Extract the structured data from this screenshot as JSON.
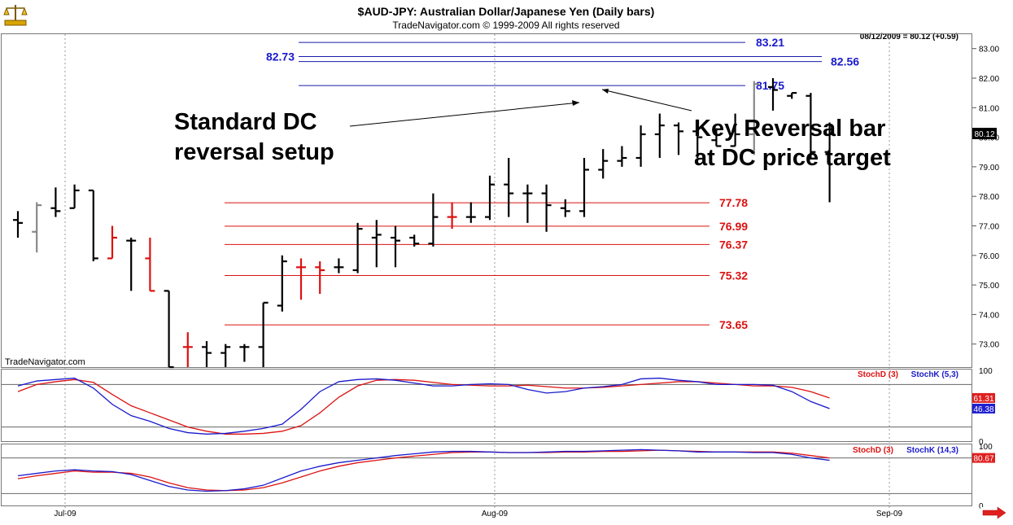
{
  "header": {
    "title": "$AUD-JPY:  Australian Dollar/Japanese Yen  (Daily bars)",
    "copyright": "TradeNavigator.com © 1999-2009 All rights reserved",
    "last_quote": "08/12/2009 = 80.12 (+0.59)",
    "watermark": "TradeNavigator.com",
    "logo_icon": "scale-logo-icon"
  },
  "colors": {
    "bar_black": "#000000",
    "bar_red": "#dd1111",
    "bar_gray": "#888888",
    "support_line": "#dd1111",
    "resistance_line": "#1a1aaa",
    "stoch_d": "#dd1111",
    "stoch_k": "#1a1acc",
    "grid": "#999999",
    "border": "#666666"
  },
  "annotations": {
    "left_text_line1": "Standard DC",
    "left_text_line2": "reversal setup",
    "right_text_line1": "Key Reversal bar",
    "right_text_line2": "at DC price target"
  },
  "chart_data": [
    {
      "type": "ohlc",
      "title": "$AUD-JPY:  Australian Dollar/Japanese Yen  (Daily bars)",
      "ylim": [
        72.2,
        83.4
      ],
      "y_ticks": [
        "83.00",
        "82.00",
        "81.00",
        "80.00",
        "79.00",
        "78.00",
        "77.00",
        "76.00",
        "75.00",
        "74.00",
        "73.00"
      ],
      "x_ticks": [
        "Jul-09",
        "Aug-09",
        "Sep-09"
      ],
      "last_value_label": "80.12",
      "bars": [
        {
          "o": 77.2,
          "h": 77.5,
          "l": 76.6,
          "c": 77.1,
          "color": "black"
        },
        {
          "o": 76.8,
          "h": 77.8,
          "l": 76.1,
          "c": 77.7,
          "color": "gray"
        },
        {
          "o": 77.6,
          "h": 78.3,
          "l": 77.3,
          "c": 77.5,
          "color": "black"
        },
        {
          "o": 77.6,
          "h": 78.4,
          "l": 77.6,
          "c": 78.2,
          "color": "black"
        },
        {
          "o": 78.2,
          "h": 78.2,
          "l": 75.8,
          "c": 75.9,
          "color": "black"
        },
        {
          "o": 75.9,
          "h": 77.0,
          "l": 75.9,
          "c": 76.6,
          "color": "red"
        },
        {
          "o": 76.5,
          "h": 76.6,
          "l": 74.8,
          "c": 76.5,
          "color": "black"
        },
        {
          "o": 75.9,
          "h": 76.6,
          "l": 74.8,
          "c": 74.8,
          "color": "red"
        },
        {
          "o": 74.8,
          "h": 74.8,
          "l": 72.2,
          "c": 72.2,
          "color": "black"
        },
        {
          "o": 72.9,
          "h": 73.4,
          "l": 72.2,
          "c": 72.9,
          "color": "red"
        },
        {
          "o": 72.9,
          "h": 73.1,
          "l": 72.2,
          "c": 72.7,
          "color": "black"
        },
        {
          "o": 72.7,
          "h": 73.0,
          "l": 72.2,
          "c": 72.9,
          "color": "black"
        },
        {
          "o": 72.9,
          "h": 73.0,
          "l": 72.4,
          "c": 72.9,
          "color": "black"
        },
        {
          "o": 72.9,
          "h": 74.4,
          "l": 72.2,
          "c": 74.4,
          "color": "black"
        },
        {
          "o": 74.3,
          "h": 76.0,
          "l": 74.1,
          "c": 75.8,
          "color": "black"
        },
        {
          "o": 75.6,
          "h": 75.9,
          "l": 74.5,
          "c": 75.6,
          "color": "red"
        },
        {
          "o": 75.6,
          "h": 75.8,
          "l": 74.7,
          "c": 75.5,
          "color": "red"
        },
        {
          "o": 75.6,
          "h": 75.9,
          "l": 75.4,
          "c": 75.6,
          "color": "black"
        },
        {
          "o": 75.5,
          "h": 77.1,
          "l": 75.4,
          "c": 76.9,
          "color": "black"
        },
        {
          "o": 76.6,
          "h": 77.2,
          "l": 75.6,
          "c": 76.7,
          "color": "black"
        },
        {
          "o": 76.6,
          "h": 77.0,
          "l": 75.6,
          "c": 76.5,
          "color": "black"
        },
        {
          "o": 76.6,
          "h": 76.7,
          "l": 76.3,
          "c": 76.4,
          "color": "black"
        },
        {
          "o": 76.4,
          "h": 78.1,
          "l": 76.3,
          "c": 77.3,
          "color": "black"
        },
        {
          "o": 77.3,
          "h": 77.8,
          "l": 76.9,
          "c": 77.3,
          "color": "red"
        },
        {
          "o": 77.3,
          "h": 77.8,
          "l": 77.1,
          "c": 77.3,
          "color": "black"
        },
        {
          "o": 77.3,
          "h": 78.7,
          "l": 77.2,
          "c": 78.4,
          "color": "black"
        },
        {
          "o": 78.4,
          "h": 79.3,
          "l": 77.3,
          "c": 78.1,
          "color": "black"
        },
        {
          "o": 78.1,
          "h": 78.4,
          "l": 77.1,
          "c": 78.1,
          "color": "black"
        },
        {
          "o": 78.1,
          "h": 78.4,
          "l": 76.8,
          "c": 77.7,
          "color": "black"
        },
        {
          "o": 77.6,
          "h": 77.9,
          "l": 77.3,
          "c": 77.5,
          "color": "black"
        },
        {
          "o": 77.5,
          "h": 79.3,
          "l": 77.3,
          "c": 78.9,
          "color": "black"
        },
        {
          "o": 78.9,
          "h": 79.6,
          "l": 78.6,
          "c": 79.2,
          "color": "black"
        },
        {
          "o": 79.2,
          "h": 79.7,
          "l": 79.0,
          "c": 79.3,
          "color": "black"
        },
        {
          "o": 79.3,
          "h": 80.4,
          "l": 79.0,
          "c": 80.1,
          "color": "black"
        },
        {
          "o": 80.1,
          "h": 80.8,
          "l": 79.3,
          "c": 80.4,
          "color": "black"
        },
        {
          "o": 80.4,
          "h": 80.5,
          "l": 79.4,
          "c": 80.2,
          "color": "black"
        },
        {
          "o": 80.2,
          "h": 80.6,
          "l": 79.3,
          "c": 80.0,
          "color": "black"
        },
        {
          "o": 79.9,
          "h": 80.3,
          "l": 79.7,
          "c": 79.7,
          "color": "black"
        },
        {
          "o": 79.7,
          "h": 80.8,
          "l": 79.7,
          "c": 80.1,
          "color": "black"
        },
        {
          "o": 80.1,
          "h": 81.9,
          "l": 79.4,
          "c": 81.8,
          "color": "gray"
        },
        {
          "o": 81.7,
          "h": 82.0,
          "l": 80.9,
          "c": 81.6,
          "color": "black"
        },
        {
          "o": 81.4,
          "h": 81.5,
          "l": 81.3,
          "c": 81.5,
          "color": "black"
        },
        {
          "o": 81.4,
          "h": 81.5,
          "l": 79.3,
          "c": 79.5,
          "color": "black"
        },
        {
          "o": 79.5,
          "h": 80.5,
          "l": 77.8,
          "c": 80.1,
          "color": "black"
        }
      ],
      "horizontal_levels": [
        {
          "value": 83.21,
          "label": "83.21",
          "color": "blue"
        },
        {
          "value": 82.73,
          "label": "82.73",
          "color": "blue"
        },
        {
          "value": 82.56,
          "label": "82.56",
          "color": "blue"
        },
        {
          "value": 81.75,
          "label": "81.75",
          "color": "blue"
        },
        {
          "value": 77.78,
          "label": "77.78",
          "color": "red"
        },
        {
          "value": 76.99,
          "label": "76.99",
          "color": "red"
        },
        {
          "value": 76.37,
          "label": "76.37",
          "color": "red"
        },
        {
          "value": 75.32,
          "label": "75.32",
          "color": "red"
        },
        {
          "value": 73.65,
          "label": "73.65",
          "color": "red"
        }
      ]
    },
    {
      "type": "line",
      "ylim": [
        0,
        100
      ],
      "y_ticks": [
        "100",
        "0"
      ],
      "legend": [
        "StochD (3)",
        "StochK (5,3)"
      ],
      "last_labels": [
        "61.31",
        "46.38"
      ],
      "series": [
        {
          "name": "StochD (3)",
          "color": "red",
          "values": [
            70,
            80,
            84,
            87,
            83,
            66,
            50,
            40,
            30,
            20,
            14,
            10,
            10,
            11,
            14,
            22,
            40,
            62,
            78,
            86,
            87,
            86,
            83,
            80,
            79,
            78,
            78,
            79,
            77,
            75,
            75,
            76,
            78,
            80,
            82,
            84,
            84,
            82,
            80,
            78,
            78,
            76,
            70,
            61
          ]
        },
        {
          "name": "StochK (5,3)",
          "color": "blue",
          "values": [
            78,
            85,
            87,
            89,
            75,
            52,
            36,
            28,
            18,
            12,
            10,
            11,
            14,
            18,
            24,
            45,
            70,
            84,
            87,
            88,
            86,
            82,
            78,
            78,
            80,
            81,
            80,
            73,
            68,
            70,
            75,
            77,
            80,
            88,
            89,
            86,
            84,
            80,
            80,
            80,
            79,
            70,
            56,
            46
          ]
        }
      ]
    },
    {
      "type": "line",
      "ylim": [
        0,
        100
      ],
      "y_ticks": [
        "100",
        "0"
      ],
      "legend": [
        "StochD (3)",
        "StochK (14,3)"
      ],
      "last_labels": [
        "80.67"
      ],
      "series": [
        {
          "name": "StochD (3)",
          "color": "red",
          "values": [
            45,
            50,
            54,
            58,
            56,
            56,
            54,
            48,
            38,
            30,
            26,
            25,
            26,
            30,
            38,
            48,
            58,
            66,
            72,
            76,
            80,
            83,
            86,
            89,
            90,
            90,
            89,
            89,
            89,
            90,
            90,
            91,
            91,
            92,
            93,
            92,
            91,
            90,
            90,
            90,
            90,
            88,
            84,
            80
          ]
        },
        {
          "name": "StochK (14,3)",
          "color": "blue",
          "values": [
            50,
            54,
            58,
            60,
            58,
            57,
            52,
            42,
            32,
            26,
            24,
            25,
            28,
            34,
            46,
            58,
            66,
            72,
            76,
            80,
            84,
            87,
            90,
            91,
            91,
            90,
            89,
            89,
            90,
            91,
            91,
            92,
            93,
            94,
            93,
            92,
            90,
            90,
            90,
            89,
            89,
            86,
            80,
            76
          ]
        }
      ]
    }
  ]
}
